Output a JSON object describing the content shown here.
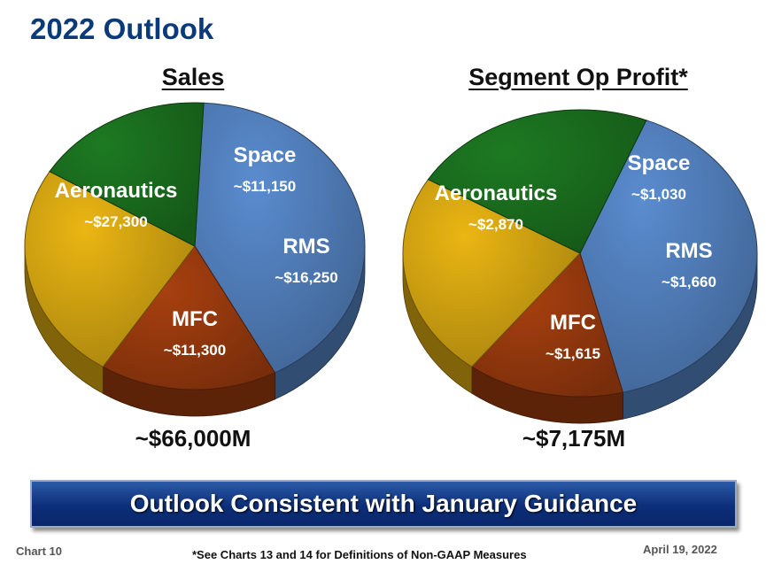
{
  "title": "2022 Outlook",
  "chart_data": [
    {
      "type": "pie",
      "title": "Sales",
      "total_label": "~$66,000M",
      "slices": [
        {
          "name": "Aeronautics",
          "value": 27300,
          "value_label": "~$27,300",
          "color": "#5a8ccf"
        },
        {
          "name": "Space",
          "value": 11150,
          "value_label": "~$11,150",
          "color": "#a8400f"
        },
        {
          "name": "RMS",
          "value": 16250,
          "value_label": "~$16,250",
          "color": "#eab613"
        },
        {
          "name": "MFC",
          "value": 11300,
          "value_label": "~$11,300",
          "color": "#1d7a22"
        }
      ]
    },
    {
      "type": "pie",
      "title": "Segment Op Profit*",
      "total_label": "~$7,175M",
      "slices": [
        {
          "name": "Aeronautics",
          "value": 2870,
          "value_label": "~$2,870",
          "color": "#5a8ccf"
        },
        {
          "name": "Space",
          "value": 1030,
          "value_label": "~$1,030",
          "color": "#a8400f"
        },
        {
          "name": "RMS",
          "value": 1660,
          "value_label": "~$1,660",
          "color": "#eab613"
        },
        {
          "name": "MFC",
          "value": 1615,
          "value_label": "~$1,615",
          "color": "#1d7a22"
        }
      ]
    }
  ],
  "banner": "Outlook Consistent with January Guidance",
  "footer": {
    "chart_number": "Chart 10",
    "note": "*See Charts 13 and 14 for Definitions of Non-GAAP Measures",
    "date": "April 19, 2022"
  }
}
